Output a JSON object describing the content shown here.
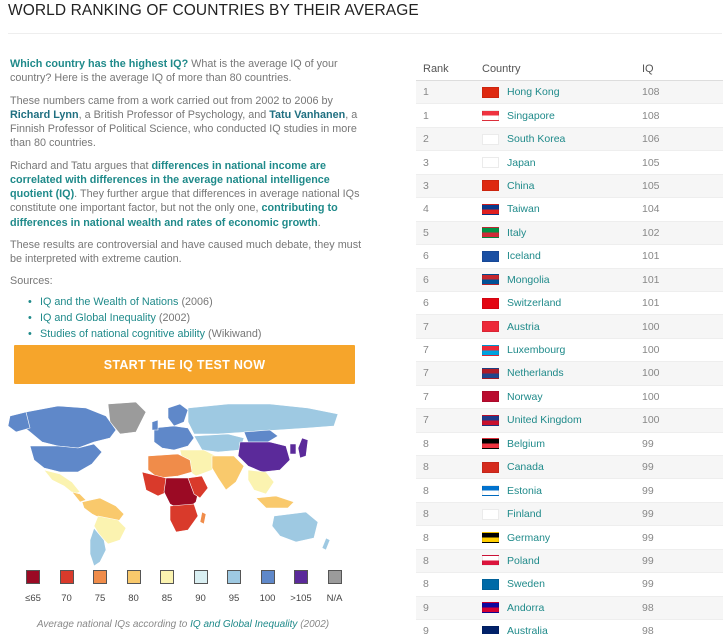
{
  "page": {
    "title": "WORLD RANKING OF COUNTRIES BY THEIR AVERAGE"
  },
  "intro": {
    "p1_q": "Which country has the highest IQ?",
    "p1_rest": " What is the average IQ of your country? Here is the average IQ of more than 80 countries.",
    "p2_a": "These numbers came from a work carried out from 2002 to 2006 by ",
    "p2_name1": "Richard Lynn",
    "p2_b": ", a British Professor of Psychology, and ",
    "p2_name2": "Tatu Vanhanen",
    "p2_c": ", a Finnish Professor of Political Science, who conducted IQ studies in more than 80 countries.",
    "p3_a": "Richard and Tatu argues that ",
    "p3_hl1": "differences in national income are correlated with differences in the average national intelligence quotient (IQ)",
    "p3_b": ". They further argue that differences in average national IQs constitute one important factor, but not the only one, ",
    "p3_hl2": "contributing to differences in national wealth and rates of economic growth",
    "p3_c": ".",
    "p4": "These results are controversial and have caused much debate, they must be interpreted with extreme caution.",
    "sources_label": "Sources:",
    "sources": [
      {
        "link": "IQ and the Wealth of Nations",
        "year": " (2006)"
      },
      {
        "link": "IQ and Global Inequality",
        "year": " (2002)"
      },
      {
        "link": "Studies of national cognitive ability",
        "year": " (Wikiwand)"
      }
    ]
  },
  "cta": {
    "label": "START THE IQ TEST NOW"
  },
  "legend": [
    {
      "label": "≤65",
      "color": "#9b0a24"
    },
    {
      "label": "70",
      "color": "#d93a2b"
    },
    {
      "label": "75",
      "color": "#f08c4a"
    },
    {
      "label": "80",
      "color": "#f9c96c"
    },
    {
      "label": "85",
      "color": "#fbf3b0"
    },
    {
      "label": "90",
      "color": "#d9eff2"
    },
    {
      "label": "95",
      "color": "#9ec9e2"
    },
    {
      "label": "100",
      "color": "#5f88c9"
    },
    {
      "label": ">105",
      "color": "#5b2a9a"
    },
    {
      "label": "N/A",
      "color": "#9b9b9b"
    }
  ],
  "caption": {
    "pre": "Average national IQs according to ",
    "link": "IQ and Global Inequality",
    "post": " (2002)"
  },
  "table": {
    "headers": {
      "rank": "Rank",
      "country": "Country",
      "iq": "IQ"
    },
    "rows": [
      {
        "rank": "1",
        "country": "Hong Kong",
        "iq": "108",
        "flag": [
          "#de2910",
          "#de2910"
        ]
      },
      {
        "rank": "1",
        "country": "Singapore",
        "iq": "108",
        "flag": [
          "#ef3340",
          "#ffffff"
        ]
      },
      {
        "rank": "2",
        "country": "South Korea",
        "iq": "106",
        "flag": [
          "#ffffff",
          "#ffffff"
        ]
      },
      {
        "rank": "3",
        "country": "Japan",
        "iq": "105",
        "flag": [
          "#ffffff",
          "#ffffff"
        ]
      },
      {
        "rank": "3",
        "country": "China",
        "iq": "105",
        "flag": [
          "#de2910",
          "#de2910"
        ]
      },
      {
        "rank": "4",
        "country": "Taiwan",
        "iq": "104",
        "flag": [
          "#0a3a8c",
          "#e02020"
        ]
      },
      {
        "rank": "5",
        "country": "Italy",
        "iq": "102",
        "flag": [
          "#009246",
          "#ce2b37"
        ]
      },
      {
        "rank": "6",
        "country": "Iceland",
        "iq": "101",
        "flag": [
          "#1a4fa3",
          "#1a4fa3"
        ]
      },
      {
        "rank": "6",
        "country": "Mongolia",
        "iq": "101",
        "flag": [
          "#c4272f",
          "#015197"
        ]
      },
      {
        "rank": "6",
        "country": "Switzerland",
        "iq": "101",
        "flag": [
          "#e30613",
          "#e30613"
        ]
      },
      {
        "rank": "7",
        "country": "Austria",
        "iq": "100",
        "flag": [
          "#ed2939",
          "#ed2939"
        ]
      },
      {
        "rank": "7",
        "country": "Luxembourg",
        "iq": "100",
        "flag": [
          "#ed2939",
          "#00a1de"
        ]
      },
      {
        "rank": "7",
        "country": "Netherlands",
        "iq": "100",
        "flag": [
          "#ae1c28",
          "#21468b"
        ]
      },
      {
        "rank": "7",
        "country": "Norway",
        "iq": "100",
        "flag": [
          "#ba0c2f",
          "#ba0c2f"
        ]
      },
      {
        "rank": "7",
        "country": "United Kingdom",
        "iq": "100",
        "flag": [
          "#1f3a8a",
          "#c8102e"
        ]
      },
      {
        "rank": "8",
        "country": "Belgium",
        "iq": "99",
        "flag": [
          "#000000",
          "#ef3340"
        ]
      },
      {
        "rank": "8",
        "country": "Canada",
        "iq": "99",
        "flag": [
          "#d52b1e",
          "#d52b1e"
        ]
      },
      {
        "rank": "8",
        "country": "Estonia",
        "iq": "99",
        "flag": [
          "#0072ce",
          "#ffffff"
        ]
      },
      {
        "rank": "8",
        "country": "Finland",
        "iq": "99",
        "flag": [
          "#ffffff",
          "#ffffff"
        ]
      },
      {
        "rank": "8",
        "country": "Germany",
        "iq": "99",
        "flag": [
          "#000000",
          "#ffce00"
        ]
      },
      {
        "rank": "8",
        "country": "Poland",
        "iq": "99",
        "flag": [
          "#ffffff",
          "#dc143c"
        ]
      },
      {
        "rank": "8",
        "country": "Sweden",
        "iq": "99",
        "flag": [
          "#006aa7",
          "#006aa7"
        ]
      },
      {
        "rank": "9",
        "country": "Andorra",
        "iq": "98",
        "flag": [
          "#10069f",
          "#d50032"
        ]
      },
      {
        "rank": "9",
        "country": "Australia",
        "iq": "98",
        "flag": [
          "#012169",
          "#012169"
        ]
      }
    ]
  }
}
